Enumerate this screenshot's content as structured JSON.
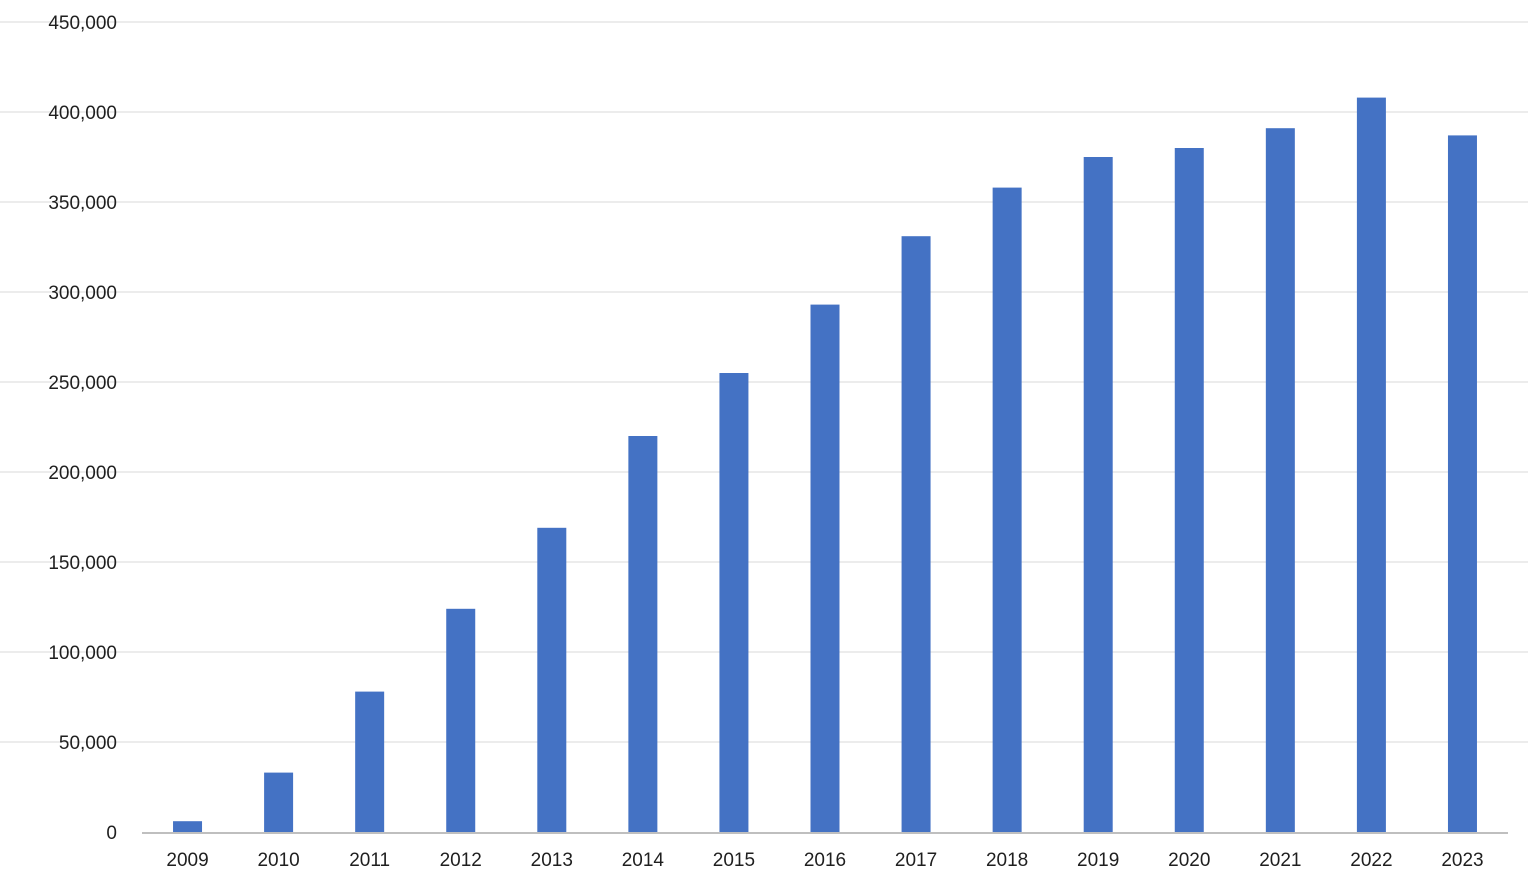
{
  "chart_data": {
    "type": "bar",
    "title": "",
    "xlabel": "",
    "ylabel": "",
    "categories": [
      "2009",
      "2010",
      "2011",
      "2012",
      "2013",
      "2014",
      "2015",
      "2016",
      "2017",
      "2018",
      "2019",
      "2020",
      "2021",
      "2022",
      "2023"
    ],
    "values": [
      6000,
      33000,
      78000,
      124000,
      169000,
      220000,
      255000,
      293000,
      331000,
      358000,
      375000,
      380000,
      391000,
      408000,
      387000
    ],
    "ylim": [
      0,
      450000
    ],
    "yticks": [
      0,
      50000,
      100000,
      150000,
      200000,
      250000,
      300000,
      350000,
      400000,
      450000
    ],
    "ytick_labels": [
      "0",
      "50,000",
      "100,000",
      "150,000",
      "200,000",
      "250,000",
      "300,000",
      "350,000",
      "400,000",
      "450,000"
    ],
    "grid": true,
    "legend": "none",
    "colors": {
      "bar": "#4472c4",
      "grid": "#d9d9d9",
      "axis": "#bfbfbf",
      "text": "#1f1f1f"
    }
  }
}
